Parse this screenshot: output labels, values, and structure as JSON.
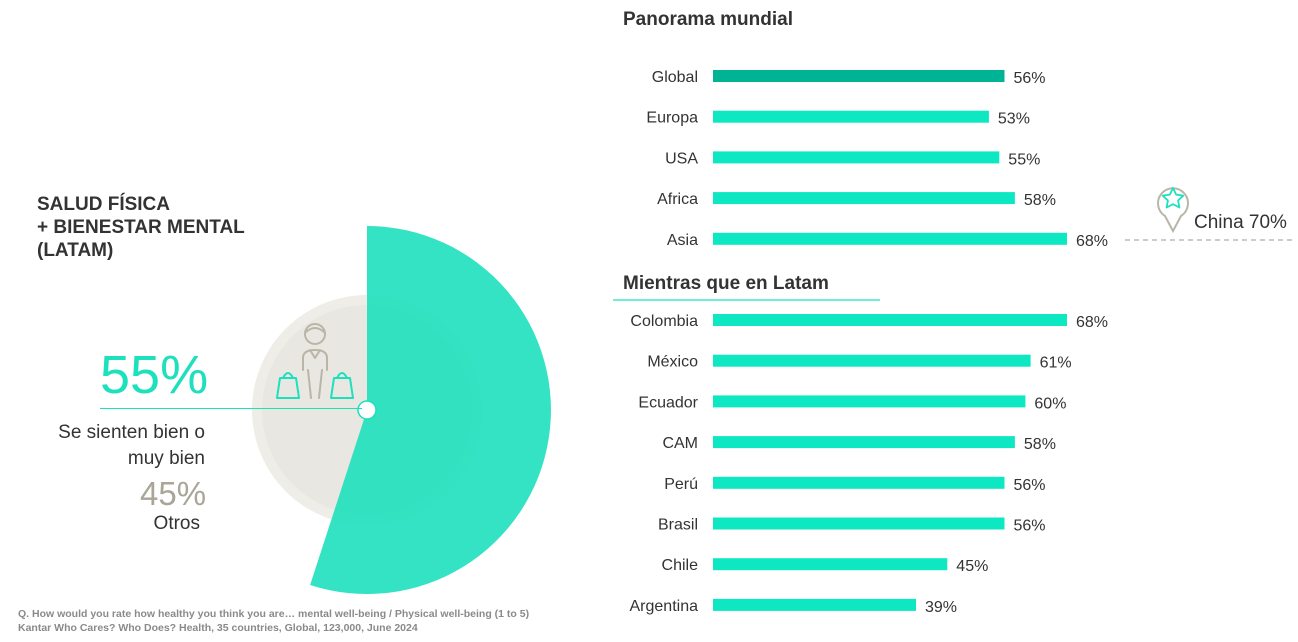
{
  "left_panel": {
    "title_lines": [
      "SALUD FÍSICA",
      "+ BIENESTAR MENTAL",
      "(LATAM)"
    ],
    "main_value": "55%",
    "main_label_lines": [
      "Se sienten bien o",
      "muy bien"
    ],
    "other_value": "45%",
    "other_label": "Otros"
  },
  "chart_data": [
    {
      "type": "pie",
      "labels": [
        "Se sienten bien o muy bien",
        "Otros"
      ],
      "values": [
        55,
        45
      ],
      "colors": [
        "#1de0bd",
        "#efede8"
      ]
    },
    {
      "type": "bar",
      "title": "Panorama mundial",
      "categories": [
        "Global",
        "Europa",
        "USA",
        "Africa",
        "Asia"
      ],
      "values": [
        56,
        53,
        55,
        58,
        68
      ],
      "value_labels": [
        "56%",
        "53%",
        "55%",
        "58%",
        "68%"
      ],
      "colors": [
        "#00b394",
        "#0de8c2",
        "#0de8c2",
        "#0de8c2",
        "#0de8c2"
      ]
    },
    {
      "type": "bar",
      "title": "Mientras que en Latam",
      "categories": [
        "Colombia",
        "México",
        "Ecuador",
        "CAM",
        "Perú",
        "Brasil",
        "Chile",
        "Argentina"
      ],
      "values": [
        68,
        61,
        60,
        58,
        56,
        56,
        45,
        39
      ],
      "value_labels": [
        "68%",
        "61%",
        "60%",
        "58%",
        "56%",
        "56%",
        "45%",
        "39%"
      ],
      "colors": [
        "#0de8c2",
        "#0de8c2",
        "#0de8c2",
        "#0de8c2",
        "#0de8c2",
        "#0de8c2",
        "#0de8c2",
        "#0de8c2"
      ]
    }
  ],
  "callout": {
    "label": "China 70%",
    "icon": "star-pin-icon"
  },
  "footnote_lines": [
    "Q. How would you rate how healthy you think you are… mental well-being / Physical well-being (1 to 5)",
    "Kantar Who Cares? Who Does? Health, 35 countries, Global, 123,000, June 2024"
  ]
}
